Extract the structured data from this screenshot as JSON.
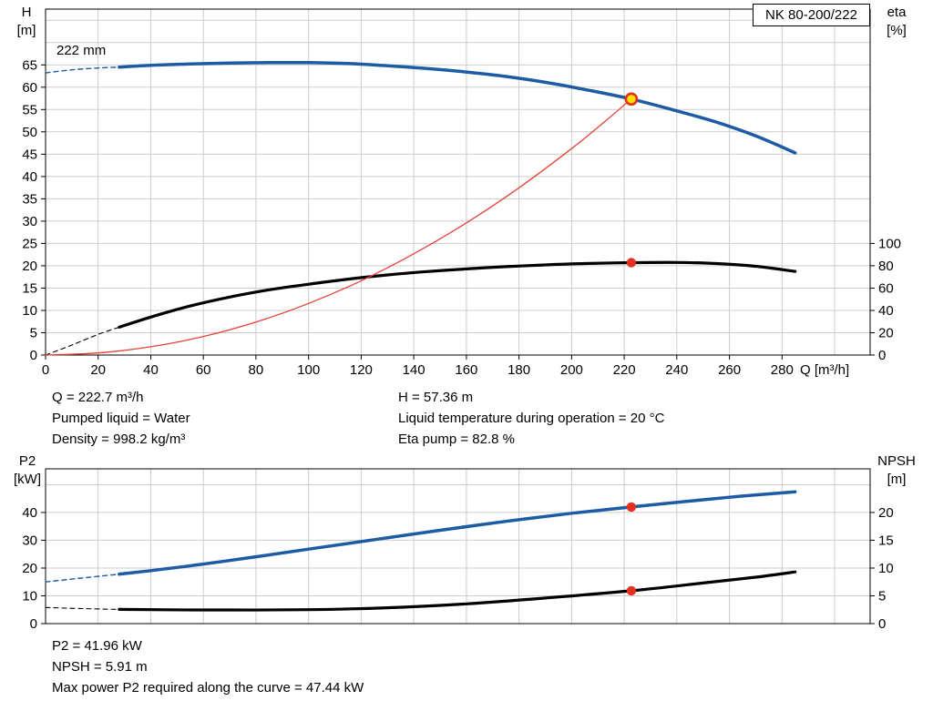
{
  "model_label": "NK 80-200/222",
  "chart_data": [
    {
      "type": "line",
      "title": "NK 80-200/222",
      "impeller_label": "222 mm",
      "grid_color": "#cccccc",
      "x_axis": {
        "label": "Q [m³/h]",
        "min": 0,
        "max": 313.5,
        "ticks": [
          0,
          20,
          40,
          60,
          80,
          100,
          120,
          140,
          160,
          180,
          200,
          220,
          240,
          260,
          280
        ],
        "grid": [
          20,
          40,
          60,
          80,
          100,
          120,
          140,
          160,
          180,
          200,
          220,
          240,
          260,
          280,
          300
        ],
        "show_labels": true
      },
      "y_left": {
        "name": "H",
        "unit": "[m]",
        "min": 0,
        "max": 77.5,
        "ticks": [
          0,
          5,
          10,
          15,
          20,
          25,
          30,
          35,
          40,
          45,
          50,
          55,
          60,
          65
        ],
        "grid": [
          5,
          10,
          15,
          20,
          25,
          30,
          35,
          40,
          45,
          50,
          55,
          60,
          65,
          70,
          75
        ]
      },
      "y_right": {
        "name": "eta",
        "unit": "[%]",
        "min": 0,
        "max": 310,
        "ticks": [
          0,
          20,
          40,
          60,
          80,
          100
        ]
      },
      "series": [
        {
          "name": "head-curve-extension",
          "axis": "left",
          "color": "#1d5ba4",
          "width": 1.4,
          "dash": "5 4",
          "points": [
            [
              0,
              63.2
            ],
            [
              10,
              63.9
            ],
            [
              20,
              64.3
            ],
            [
              28,
              64.5
            ]
          ]
        },
        {
          "name": "head-curve",
          "axis": "left",
          "color": "#1d5ba4",
          "width": 3.5,
          "points": [
            [
              28,
              64.5
            ],
            [
              40,
              64.9
            ],
            [
              55,
              65.2
            ],
            [
              70,
              65.4
            ],
            [
              85,
              65.5
            ],
            [
              100,
              65.5
            ],
            [
              115,
              65.3
            ],
            [
              130,
              64.8
            ],
            [
              145,
              64.2
            ],
            [
              160,
              63.4
            ],
            [
              175,
              62.4
            ],
            [
              190,
              61.1
            ],
            [
              205,
              59.5
            ],
            [
              222.7,
              57.36
            ],
            [
              240,
              54.7
            ],
            [
              255,
              52.2
            ],
            [
              270,
              49.1
            ],
            [
              285,
              45.3
            ]
          ]
        },
        {
          "name": "eta-curve-extension",
          "axis": "right",
          "color": "#000000",
          "width": 1.1,
          "dash": "5 4",
          "points": [
            [
              0,
              0
            ],
            [
              10,
              9
            ],
            [
              20,
              18.5
            ],
            [
              28,
              25
            ]
          ]
        },
        {
          "name": "eta-curve",
          "axis": "right",
          "color": "#000000",
          "width": 3.2,
          "points": [
            [
              28,
              25
            ],
            [
              40,
              34
            ],
            [
              55,
              44
            ],
            [
              70,
              52
            ],
            [
              85,
              58.5
            ],
            [
              100,
              63.5
            ],
            [
              115,
              68
            ],
            [
              130,
              71.8
            ],
            [
              145,
              74.8
            ],
            [
              160,
              77.2
            ],
            [
              175,
              79.2
            ],
            [
              190,
              80.8
            ],
            [
              205,
              82
            ],
            [
              222.7,
              82.8
            ],
            [
              240,
              83
            ],
            [
              255,
              82
            ],
            [
              270,
              79.5
            ],
            [
              285,
              75
            ]
          ]
        },
        {
          "name": "system-curve",
          "axis": "left",
          "color": "#e64035",
          "width": 1.3,
          "points": [
            [
              0,
              0
            ],
            [
              20,
              0.46
            ],
            [
              40,
              1.85
            ],
            [
              60,
              4.16
            ],
            [
              80,
              7.4
            ],
            [
              100,
              11.57
            ],
            [
              120,
              16.65
            ],
            [
              140,
              22.67
            ],
            [
              160,
              29.61
            ],
            [
              180,
              37.47
            ],
            [
              200,
              46.26
            ],
            [
              210,
              51.0
            ],
            [
              222.7,
              57.36
            ]
          ]
        }
      ],
      "markers": [
        {
          "name": "duty-point-marker",
          "axis": "left",
          "x": 222.7,
          "y": 57.36,
          "r": 6,
          "fill": "#ffe100",
          "stroke": "#e53020",
          "stroke_width": 2.6
        },
        {
          "name": "eta-point-marker",
          "axis": "right",
          "x": 222.7,
          "y": 82.8,
          "r": 5.2,
          "fill": "#e53020"
        }
      ]
    },
    {
      "type": "line",
      "grid_color": "#cccccc",
      "x_axis": {
        "min": 0,
        "max": 313.5,
        "ticks": [],
        "grid": [
          20,
          40,
          60,
          80,
          100,
          120,
          140,
          160,
          180,
          200,
          220,
          240,
          260,
          280,
          300
        ],
        "show_labels": false
      },
      "y_left": {
        "name": "P2",
        "unit": "[kW]",
        "min": 0,
        "max": 55.7,
        "ticks": [
          0,
          10,
          20,
          30,
          40
        ],
        "grid": [
          10,
          20,
          30,
          40,
          50
        ]
      },
      "y_right": {
        "name": "NPSH",
        "unit": "[m]",
        "min": 0,
        "max": 27.85,
        "ticks": [
          0,
          5,
          10,
          15,
          20
        ]
      },
      "series": [
        {
          "name": "p2-curve-extension",
          "axis": "left",
          "color": "#1d5ba4",
          "width": 1.4,
          "dash": "5 4",
          "points": [
            [
              0,
              15
            ],
            [
              14,
              16.4
            ],
            [
              28,
              17.8
            ]
          ]
        },
        {
          "name": "p2-curve",
          "axis": "left",
          "color": "#1d5ba4",
          "width": 3.5,
          "points": [
            [
              28,
              17.8
            ],
            [
              50,
              20.2
            ],
            [
              75,
              23.4
            ],
            [
              100,
              26.8
            ],
            [
              125,
              30.2
            ],
            [
              150,
              33.6
            ],
            [
              175,
              36.8
            ],
            [
              200,
              39.7
            ],
            [
              222.7,
              41.96
            ],
            [
              245,
              44.1
            ],
            [
              265,
              45.9
            ],
            [
              285,
              47.44
            ]
          ]
        },
        {
          "name": "npsh-curve-extension",
          "axis": "right",
          "color": "#000000",
          "width": 1.1,
          "dash": "5 4",
          "points": [
            [
              0,
              2.9
            ],
            [
              14,
              2.7
            ],
            [
              28,
              2.55
            ]
          ]
        },
        {
          "name": "npsh-curve",
          "axis": "right",
          "color": "#000000",
          "width": 3.2,
          "points": [
            [
              28,
              2.55
            ],
            [
              60,
              2.45
            ],
            [
              100,
              2.5
            ],
            [
              130,
              2.85
            ],
            [
              160,
              3.55
            ],
            [
              190,
              4.6
            ],
            [
              222.7,
              5.91
            ],
            [
              250,
              7.3
            ],
            [
              270,
              8.35
            ],
            [
              285,
              9.3
            ]
          ]
        }
      ],
      "markers": [
        {
          "name": "p2-point-marker",
          "axis": "left",
          "x": 222.7,
          "y": 41.96,
          "r": 5.2,
          "fill": "#e53020"
        },
        {
          "name": "npsh-point-marker",
          "axis": "right",
          "x": 222.7,
          "y": 5.91,
          "r": 5.2,
          "fill": "#e53020"
        }
      ]
    }
  ],
  "info_top": {
    "col1": [
      "Q = 222.7 m³/h",
      "Pumped liquid = Water",
      "Density = 998.2 kg/m³"
    ],
    "col2": [
      "H = 57.36 m",
      "Liquid temperature during operation = 20 °C",
      "Eta pump = 82.8 %"
    ]
  },
  "info_bottom": [
    "P2 = 41.96 kW",
    "NPSH = 5.91 m",
    "Max power P2 required along the curve = 47.44 kW"
  ]
}
